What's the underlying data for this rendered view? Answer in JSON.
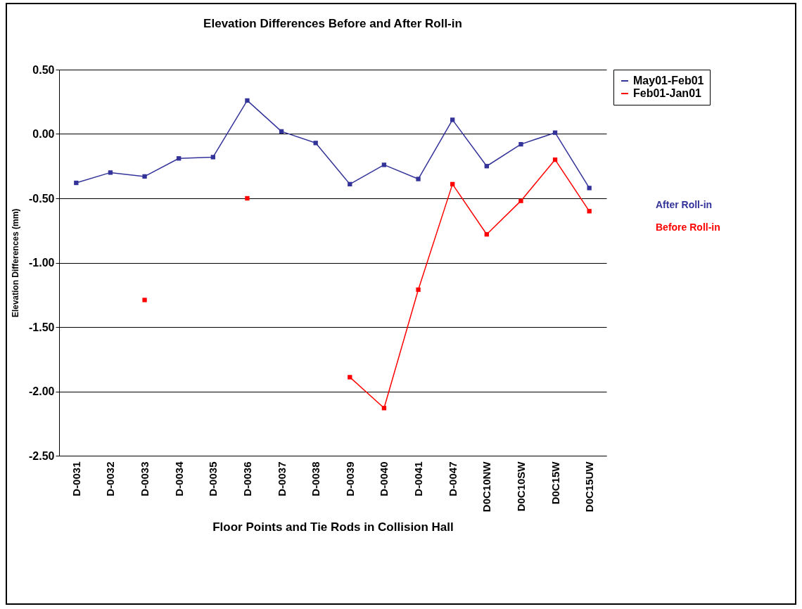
{
  "chart_data": {
    "type": "line",
    "title": "Elevation Differences Before and After Roll-in",
    "xlabel": "Floor Points and Tie Rods in Collision Hall",
    "ylabel": "Elevation Differences (mm)",
    "categories": [
      "D-0031",
      "D-0032",
      "D-0033",
      "D-0034",
      "D-0035",
      "D-0036",
      "D-0037",
      "D-0038",
      "D-0039",
      "D-0040",
      "D-0041",
      "D-0047",
      "D0C10NW",
      "D0C10SW",
      "D0C15W",
      "D0C15UW"
    ],
    "series": [
      {
        "name": "May01-Feb01",
        "color": "#333399",
        "values": [
          -0.38,
          -0.3,
          -0.33,
          -0.19,
          -0.18,
          0.26,
          0.02,
          -0.07,
          -0.39,
          -0.24,
          -0.35,
          0.11,
          -0.25,
          -0.08,
          0.01,
          -0.42
        ]
      },
      {
        "name": "Feb01-Jan01",
        "color": "#ff0000",
        "values": [
          null,
          null,
          -1.29,
          null,
          null,
          -0.5,
          null,
          null,
          -1.89,
          -2.13,
          -1.21,
          -0.39,
          -0.78,
          -0.52,
          -0.2,
          -0.6
        ]
      }
    ],
    "annotations": [
      "After Roll-in",
      "Before Roll-in"
    ],
    "ylim": [
      -2.5,
      0.5
    ],
    "yticks": [
      {
        "value": -2.5,
        "label": "-2.50"
      },
      {
        "value": -2,
        "label": "-2.00"
      },
      {
        "value": -1.5,
        "label": "-1.50"
      },
      {
        "value": -1,
        "label": "-1.00"
      },
      {
        "value": -0.5,
        "label": "-0.50"
      },
      {
        "value": 0,
        "label": "0.00"
      },
      {
        "value": 0.5,
        "label": "0.50"
      }
    ],
    "grid": "y",
    "legend": "right",
    "marker": "square",
    "line_style": "solid"
  }
}
